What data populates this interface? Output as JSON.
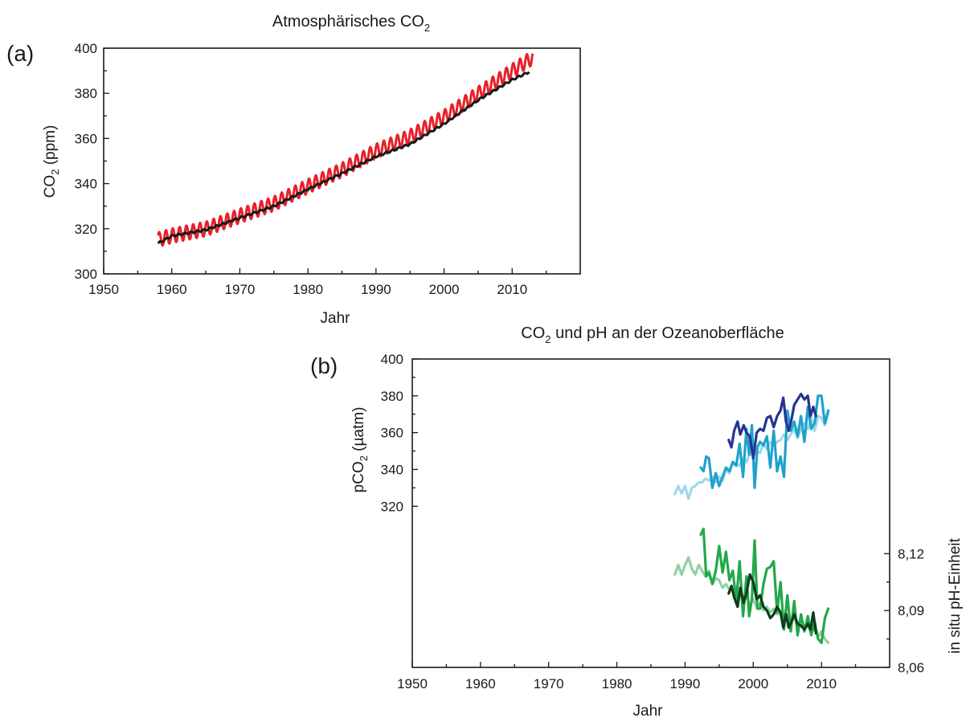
{
  "colors": {
    "monthly_co2": "#e8202a",
    "annual_co2": "#1a1a1a",
    "pco2_light": "#9fd8ea",
    "pco2_mid": "#1fa3cc",
    "pco2_dark": "#253494",
    "ph_light": "#8fd1a5",
    "ph_mid": "#23a84a",
    "ph_dark": "#0f3d1c"
  },
  "chart_data": [
    {
      "type": "line",
      "panel_letter": "(a)",
      "title_main": "Atmosphärisches CO",
      "title_sub": "2",
      "xlabel": "Jahr",
      "ylabel_main": "CO",
      "ylabel_sub": "2",
      "ylabel_rest": " (ppm)",
      "xlim": [
        1950,
        2020
      ],
      "ylim": [
        300,
        400
      ],
      "x_ticks": [
        1950,
        1960,
        1970,
        1980,
        1990,
        2000,
        2010
      ],
      "y_ticks": [
        300,
        320,
        340,
        360,
        380,
        400
      ],
      "series": [
        {
          "key": "monthly",
          "color": "#e8202a",
          "seasonal_amplitude": 3.2,
          "x": [
            1958,
            1960,
            1965,
            1970,
            1975,
            1980,
            1985,
            1990,
            1995,
            2000,
            2005,
            2010,
            2013
          ],
          "values": [
            315.2,
            316.9,
            319.9,
            325.7,
            331.1,
            338.8,
            346.0,
            354.4,
            360.8,
            369.5,
            379.8,
            389.9,
            395.8
          ]
        },
        {
          "key": "annual",
          "color": "#1a1a1a",
          "x": [
            1958,
            1960,
            1965,
            1970,
            1975,
            1980,
            1985,
            1990,
            1995,
            2000,
            2005,
            2010,
            2012.5
          ],
          "values": [
            313.5,
            316.8,
            319.5,
            324.8,
            330.0,
            337.5,
            344.5,
            352.0,
            357.5,
            366.5,
            377.0,
            386.0,
            389.5
          ]
        }
      ]
    },
    {
      "type": "line",
      "panel_letter": "(b)",
      "title_main": "CO",
      "title_sub": "2",
      "title_rest": " und pH an der Ozeanoberfläche",
      "xlabel": "Jahr",
      "ylabel_left_main": "pCO",
      "ylabel_left_sub": "2",
      "ylabel_left_rest": " (µatm)",
      "ylabel_right": "in situ pH-Einheit",
      "xlim": [
        1950,
        2020
      ],
      "x_ticks": [
        1950,
        1960,
        1970,
        1980,
        1990,
        2000,
        2010
      ],
      "ylim_left": [
        280,
        400
      ],
      "y_ticks_left": [
        320,
        340,
        360,
        380,
        400
      ],
      "ylim_right": [
        8.06,
        8.16
      ],
      "y_ticks_right": [
        "8,06",
        "8,09",
        "8,12"
      ],
      "y_tick_values_right": [
        8.06,
        8.09,
        8.12
      ],
      "pco2_series": [
        {
          "key": "pco2_light",
          "color": "#9fd8ea",
          "x": [
            1988.5,
            1989,
            1989.5,
            1990,
            1990.5,
            1991,
            1991.5,
            1992,
            1992.5,
            1993,
            1993.5,
            1994,
            1994.5,
            1995,
            1995.5,
            1996,
            1996.5,
            1997,
            1997.5,
            1998,
            1998.5,
            1999,
            1999.5,
            2000,
            2000.5,
            2001,
            2001.5,
            2002,
            2002.5,
            2003,
            2003.5,
            2004,
            2004.5,
            2005,
            2005.5,
            2006,
            2006.5,
            2007,
            2007.5,
            2008,
            2008.5,
            2009,
            2009.5,
            2010,
            2010.5,
            2011
          ],
          "values": [
            326.5,
            331,
            327,
            331,
            324,
            330,
            331,
            333,
            333,
            335,
            334,
            336,
            333,
            336,
            334,
            340,
            338,
            344,
            343,
            342,
            346,
            344,
            349,
            347,
            350,
            349,
            354,
            351,
            355,
            353,
            355,
            356,
            359,
            356,
            359,
            362,
            357,
            362,
            365,
            362,
            368,
            361,
            369,
            368,
            364,
            371
          ]
        },
        {
          "key": "pco2_mid",
          "color": "#1fa3cc",
          "x": [
            1992.3,
            1992.7,
            1993.1,
            1993.5,
            1994.0,
            1994.5,
            1995.0,
            1995.5,
            1996.0,
            1996.5,
            1997.0,
            1997.5,
            1998.0,
            1998.5,
            1999.0,
            1999.4,
            1999.8,
            2000.2,
            2000.6,
            2001.0,
            2001.5,
            2002.0,
            2002.5,
            2003.0,
            2003.5,
            2004.0,
            2004.5,
            2005.0,
            2005.5,
            2006.0,
            2006.5,
            2007.0,
            2007.5,
            2008.0,
            2008.5,
            2009.0,
            2009.5,
            2010.0,
            2010.5,
            2011.0
          ],
          "values": [
            341,
            339,
            347,
            346,
            330,
            338,
            331,
            336,
            341,
            339,
            344,
            342,
            354,
            336,
            362,
            348,
            364,
            330,
            352,
            355,
            353,
            358,
            341,
            361,
            339,
            347,
            336,
            372,
            361,
            366,
            358,
            369,
            355,
            374,
            362,
            365,
            380,
            380,
            365,
            372
          ]
        },
        {
          "key": "pco2_dark",
          "color": "#253494",
          "x": [
            1996.4,
            1996.8,
            1997.2,
            1997.7,
            1998.1,
            1998.6,
            1999.0,
            1999.5,
            2000.0,
            2000.5,
            2001.0,
            2001.5,
            2002.0,
            2002.5,
            2003.0,
            2003.5,
            2004.0,
            2004.4,
            2004.8,
            2005.2,
            2005.6,
            2006.0,
            2006.5,
            2007.0,
            2007.5,
            2008.0,
            2008.4,
            2008.8,
            2009.2
          ],
          "values": [
            356,
            352,
            361,
            366,
            359,
            364,
            360,
            358,
            346,
            360,
            362,
            361,
            368,
            369,
            363,
            369,
            372,
            379,
            366,
            361,
            367,
            375,
            378,
            381,
            378,
            380,
            369,
            374,
            369
          ]
        }
      ],
      "ph_series": [
        {
          "key": "ph_light",
          "color": "#8fd1a5",
          "x": [
            1988.5,
            1989,
            1989.5,
            1990,
            1990.5,
            1991,
            1991.5,
            1992,
            1992.5,
            1993,
            1993.5,
            1994,
            1994.5,
            1995,
            1995.5,
            1996,
            1996.5,
            1997,
            1997.5,
            1998,
            1998.5,
            1999,
            1999.5,
            2000,
            2000.5,
            2001,
            2001.5,
            2002,
            2002.5,
            2003,
            2003.5,
            2004,
            2004.5,
            2005,
            2005.5,
            2006,
            2006.5,
            2007,
            2007.5,
            2008,
            2008.5,
            2009,
            2009.5,
            2010,
            2010.5,
            2011
          ],
          "values": [
            8.109,
            8.114,
            8.109,
            8.114,
            8.118,
            8.112,
            8.109,
            8.114,
            8.111,
            8.108,
            8.111,
            8.104,
            8.107,
            8.106,
            8.102,
            8.104,
            8.101,
            8.1,
            8.097,
            8.099,
            8.096,
            8.098,
            8.093,
            8.096,
            8.092,
            8.094,
            8.09,
            8.092,
            8.089,
            8.091,
            8.088,
            8.089,
            8.085,
            8.088,
            8.084,
            8.086,
            8.082,
            8.084,
            8.08,
            8.082,
            8.078,
            8.081,
            8.076,
            8.079,
            8.075,
            8.073
          ]
        },
        {
          "key": "ph_mid",
          "color": "#23a84a",
          "x": [
            1992.3,
            1992.7,
            1993.1,
            1993.5,
            1994.0,
            1994.5,
            1995.0,
            1995.5,
            1996.0,
            1996.5,
            1997.0,
            1997.5,
            1998.0,
            1998.5,
            1999.0,
            1999.4,
            1999.8,
            2000.2,
            2000.6,
            2001.0,
            2001.5,
            2002.0,
            2002.5,
            2003.0,
            2003.5,
            2004.0,
            2004.5,
            2005.0,
            2005.5,
            2006.0,
            2006.5,
            2007.0,
            2007.5,
            2008.0,
            2008.5,
            2009.0,
            2009.5,
            2010.0,
            2010.5,
            2011.0
          ],
          "values": [
            8.13,
            8.133,
            8.108,
            8.11,
            8.104,
            8.111,
            8.124,
            8.11,
            8.121,
            8.106,
            8.111,
            8.095,
            8.116,
            8.087,
            8.108,
            8.087,
            8.096,
            8.127,
            8.091,
            8.091,
            8.104,
            8.112,
            8.113,
            8.116,
            8.089,
            8.105,
            8.08,
            8.098,
            8.079,
            8.095,
            8.077,
            8.088,
            8.079,
            8.087,
            8.077,
            8.084,
            8.075,
            8.073,
            8.086,
            8.091
          ]
        },
        {
          "key": "ph_dark",
          "color": "#0f3d1c",
          "x": [
            1996.4,
            1996.8,
            1997.2,
            1997.7,
            1998.1,
            1998.6,
            1999.0,
            1999.5,
            2000.0,
            2000.5,
            2001.0,
            2001.5,
            2002.0,
            2002.5,
            2003.0,
            2003.5,
            2004.0,
            2004.4,
            2004.8,
            2005.2,
            2005.6,
            2006.0,
            2006.5,
            2007.0,
            2007.5,
            2008.0,
            2008.4,
            2008.8,
            2009.2
          ],
          "values": [
            8.099,
            8.103,
            8.097,
            8.092,
            8.102,
            8.094,
            8.099,
            8.109,
            8.105,
            8.096,
            8.098,
            8.092,
            8.09,
            8.086,
            8.088,
            8.092,
            8.089,
            8.081,
            8.088,
            8.081,
            8.084,
            8.088,
            8.083,
            8.082,
            8.08,
            8.083,
            8.08,
            8.089,
            8.078
          ]
        }
      ]
    }
  ]
}
